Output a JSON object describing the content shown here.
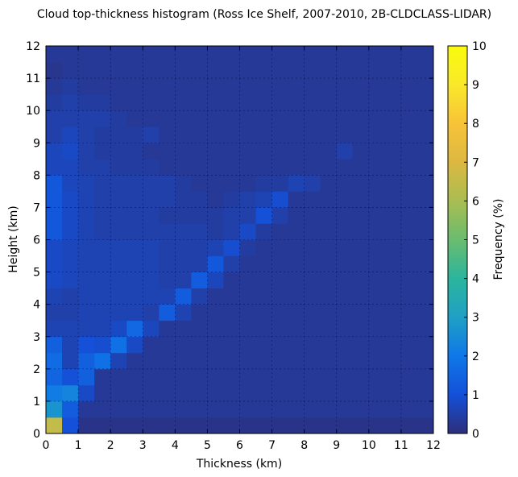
{
  "chart_data": {
    "type": "heatmap",
    "title": "Cloud top-thickness histogram (Ross Ice Shelf, 2007-2010, 2B-CLDCLASS-LIDAR)",
    "xlabel": "Thickness (km)",
    "ylabel": "Height (km)",
    "xlim": [
      0,
      12
    ],
    "ylim": [
      0,
      12
    ],
    "bin_width_km": 0.5,
    "grid": true,
    "xticks": [
      "0",
      "1",
      "2",
      "3",
      "4",
      "5",
      "6",
      "7",
      "8",
      "9",
      "10",
      "11",
      "12"
    ],
    "yticks": [
      "0",
      "1",
      "2",
      "3",
      "4",
      "5",
      "6",
      "7",
      "8",
      "9",
      "10",
      "11",
      "12"
    ],
    "colorbar": {
      "label": "Frequency (%)",
      "range": [
        0,
        10
      ],
      "ticks": [
        "0",
        "1",
        "2",
        "3",
        "4",
        "5",
        "6",
        "7",
        "8",
        "9",
        "10"
      ],
      "colormap": [
        "#2d2f7a",
        "#1450d8",
        "#0f78e8",
        "#1fa0c4",
        "#2bb59d",
        "#6abc6f",
        "#a9bd52",
        "#dcb841",
        "#f8c338",
        "#f9e92a",
        "#f9fb0e"
      ]
    },
    "values": [
      [
        6.5,
        1.0,
        0.15,
        0.15,
        0.15,
        0.15,
        0.15,
        0.15,
        0.15,
        0.15,
        0.15,
        0.15,
        0.15,
        0.15,
        0.15,
        0.15,
        0.15,
        0.15,
        0.15,
        0.15,
        0.15,
        0.15,
        0.15,
        0.15
      ],
      [
        2.7,
        1.3,
        0.3,
        0.3,
        0.3,
        0.3,
        0.3,
        0.3,
        0.3,
        0.3,
        0.3,
        0.3,
        0.3,
        0.3,
        0.3,
        0.3,
        0.3,
        0.3,
        0.3,
        0.3,
        0.3,
        0.3,
        0.3,
        0.3
      ],
      [
        2.1,
        2.3,
        0.8,
        0.3,
        0.3,
        0.3,
        0.3,
        0.3,
        0.3,
        0.3,
        0.3,
        0.3,
        0.3,
        0.3,
        0.3,
        0.3,
        0.3,
        0.3,
        0.3,
        0.3,
        0.3,
        0.3,
        0.3,
        0.3
      ],
      [
        1.5,
        1.0,
        1.4,
        0.3,
        0.3,
        0.3,
        0.3,
        0.3,
        0.3,
        0.3,
        0.3,
        0.3,
        0.3,
        0.3,
        0.3,
        0.3,
        0.3,
        0.3,
        0.3,
        0.3,
        0.3,
        0.3,
        0.3,
        0.3
      ],
      [
        1.7,
        0.6,
        1.4,
        1.8,
        0.6,
        0.3,
        0.3,
        0.3,
        0.3,
        0.3,
        0.3,
        0.3,
        0.3,
        0.3,
        0.3,
        0.3,
        0.3,
        0.3,
        0.3,
        0.3,
        0.3,
        0.3,
        0.3,
        0.3
      ],
      [
        1.4,
        0.6,
        1.0,
        0.9,
        1.8,
        0.8,
        0.3,
        0.3,
        0.3,
        0.3,
        0.3,
        0.3,
        0.3,
        0.3,
        0.3,
        0.3,
        0.3,
        0.3,
        0.3,
        0.3,
        0.3,
        0.3,
        0.3,
        0.3
      ],
      [
        0.6,
        0.6,
        0.6,
        0.6,
        0.8,
        1.6,
        0.7,
        0.3,
        0.3,
        0.3,
        0.3,
        0.3,
        0.3,
        0.3,
        0.3,
        0.3,
        0.3,
        0.3,
        0.3,
        0.3,
        0.3,
        0.3,
        0.3,
        0.3
      ],
      [
        0.5,
        0.5,
        0.6,
        0.6,
        0.6,
        0.6,
        0.5,
        1.3,
        0.6,
        0.3,
        0.3,
        0.3,
        0.3,
        0.3,
        0.3,
        0.3,
        0.3,
        0.3,
        0.3,
        0.3,
        0.3,
        0.3,
        0.3,
        0.3
      ],
      [
        0.6,
        0.5,
        0.6,
        0.6,
        0.6,
        0.6,
        0.6,
        0.6,
        1.3,
        0.5,
        0.3,
        0.3,
        0.3,
        0.3,
        0.3,
        0.3,
        0.3,
        0.3,
        0.3,
        0.3,
        0.3,
        0.3,
        0.3,
        0.3
      ],
      [
        0.8,
        0.7,
        0.6,
        0.6,
        0.6,
        0.6,
        0.6,
        0.5,
        0.5,
        1.3,
        0.7,
        0.3,
        0.3,
        0.3,
        0.3,
        0.3,
        0.3,
        0.3,
        0.3,
        0.3,
        0.3,
        0.3,
        0.3,
        0.3
      ],
      [
        0.8,
        0.7,
        0.6,
        0.6,
        0.6,
        0.6,
        0.6,
        0.5,
        0.5,
        0.5,
        1.2,
        0.5,
        0.3,
        0.3,
        0.3,
        0.3,
        0.3,
        0.3,
        0.3,
        0.3,
        0.3,
        0.3,
        0.3,
        0.3
      ],
      [
        0.8,
        0.7,
        0.6,
        0.6,
        0.6,
        0.6,
        0.6,
        0.5,
        0.5,
        0.5,
        0.6,
        0.9,
        0.4,
        0.3,
        0.3,
        0.3,
        0.3,
        0.3,
        0.3,
        0.3,
        0.3,
        0.3,
        0.3,
        0.3
      ],
      [
        1.2,
        0.8,
        0.6,
        0.5,
        0.5,
        0.5,
        0.5,
        0.5,
        0.5,
        0.5,
        0.4,
        0.5,
        0.8,
        0.4,
        0.3,
        0.3,
        0.3,
        0.3,
        0.3,
        0.3,
        0.3,
        0.3,
        0.3,
        0.3
      ],
      [
        1.2,
        0.8,
        0.6,
        0.5,
        0.5,
        0.5,
        0.5,
        0.4,
        0.4,
        0.4,
        0.4,
        0.5,
        0.5,
        1.0,
        0.5,
        0.3,
        0.3,
        0.3,
        0.3,
        0.3,
        0.3,
        0.3,
        0.3,
        0.3
      ],
      [
        1.2,
        0.8,
        0.6,
        0.5,
        0.5,
        0.5,
        0.5,
        0.5,
        0.4,
        0.4,
        0.3,
        0.4,
        0.5,
        0.6,
        0.9,
        0.3,
        0.3,
        0.3,
        0.3,
        0.3,
        0.3,
        0.3,
        0.3,
        0.3
      ],
      [
        1.2,
        0.7,
        0.6,
        0.5,
        0.5,
        0.5,
        0.5,
        0.5,
        0.4,
        0.3,
        0.3,
        0.3,
        0.3,
        0.4,
        0.4,
        0.6,
        0.5,
        0.3,
        0.3,
        0.3,
        0.3,
        0.3,
        0.3,
        0.3
      ],
      [
        0.7,
        0.7,
        0.5,
        0.5,
        0.4,
        0.4,
        0.4,
        0.3,
        0.3,
        0.3,
        0.3,
        0.3,
        0.3,
        0.3,
        0.3,
        0.3,
        0.3,
        0.3,
        0.3,
        0.3,
        0.3,
        0.3,
        0.3,
        0.3
      ],
      [
        0.7,
        0.8,
        0.5,
        0.4,
        0.4,
        0.4,
        0.3,
        0.3,
        0.3,
        0.3,
        0.3,
        0.3,
        0.3,
        0.3,
        0.3,
        0.3,
        0.3,
        0.3,
        0.5,
        0.3,
        0.3,
        0.3,
        0.3,
        0.3
      ],
      [
        0.5,
        0.7,
        0.5,
        0.4,
        0.4,
        0.4,
        0.5,
        0.3,
        0.3,
        0.3,
        0.3,
        0.3,
        0.3,
        0.3,
        0.3,
        0.3,
        0.3,
        0.3,
        0.3,
        0.3,
        0.3,
        0.3,
        0.3,
        0.3
      ],
      [
        0.5,
        0.5,
        0.5,
        0.5,
        0.4,
        0.3,
        0.3,
        0.3,
        0.3,
        0.3,
        0.3,
        0.3,
        0.3,
        0.3,
        0.3,
        0.3,
        0.3,
        0.3,
        0.3,
        0.3,
        0.3,
        0.3,
        0.3,
        0.3
      ],
      [
        0.4,
        0.5,
        0.4,
        0.4,
        0.3,
        0.3,
        0.3,
        0.3,
        0.3,
        0.3,
        0.3,
        0.3,
        0.3,
        0.3,
        0.3,
        0.3,
        0.3,
        0.3,
        0.3,
        0.3,
        0.3,
        0.3,
        0.3,
        0.3
      ],
      [
        0.3,
        0.4,
        0.3,
        0.3,
        0.3,
        0.3,
        0.3,
        0.3,
        0.3,
        0.3,
        0.3,
        0.3,
        0.3,
        0.3,
        0.3,
        0.3,
        0.3,
        0.3,
        0.3,
        0.3,
        0.3,
        0.3,
        0.3,
        0.3
      ],
      [
        0.2,
        0.3,
        0.3,
        0.3,
        0.3,
        0.3,
        0.3,
        0.3,
        0.3,
        0.3,
        0.3,
        0.3,
        0.3,
        0.3,
        0.3,
        0.3,
        0.3,
        0.3,
        0.3,
        0.3,
        0.3,
        0.3,
        0.3,
        0.3
      ],
      [
        0.3,
        0.3,
        0.3,
        0.3,
        0.3,
        0.3,
        0.3,
        0.3,
        0.3,
        0.3,
        0.3,
        0.3,
        0.3,
        0.3,
        0.3,
        0.3,
        0.3,
        0.3,
        0.3,
        0.3,
        0.3,
        0.3,
        0.3,
        0.3
      ]
    ]
  }
}
